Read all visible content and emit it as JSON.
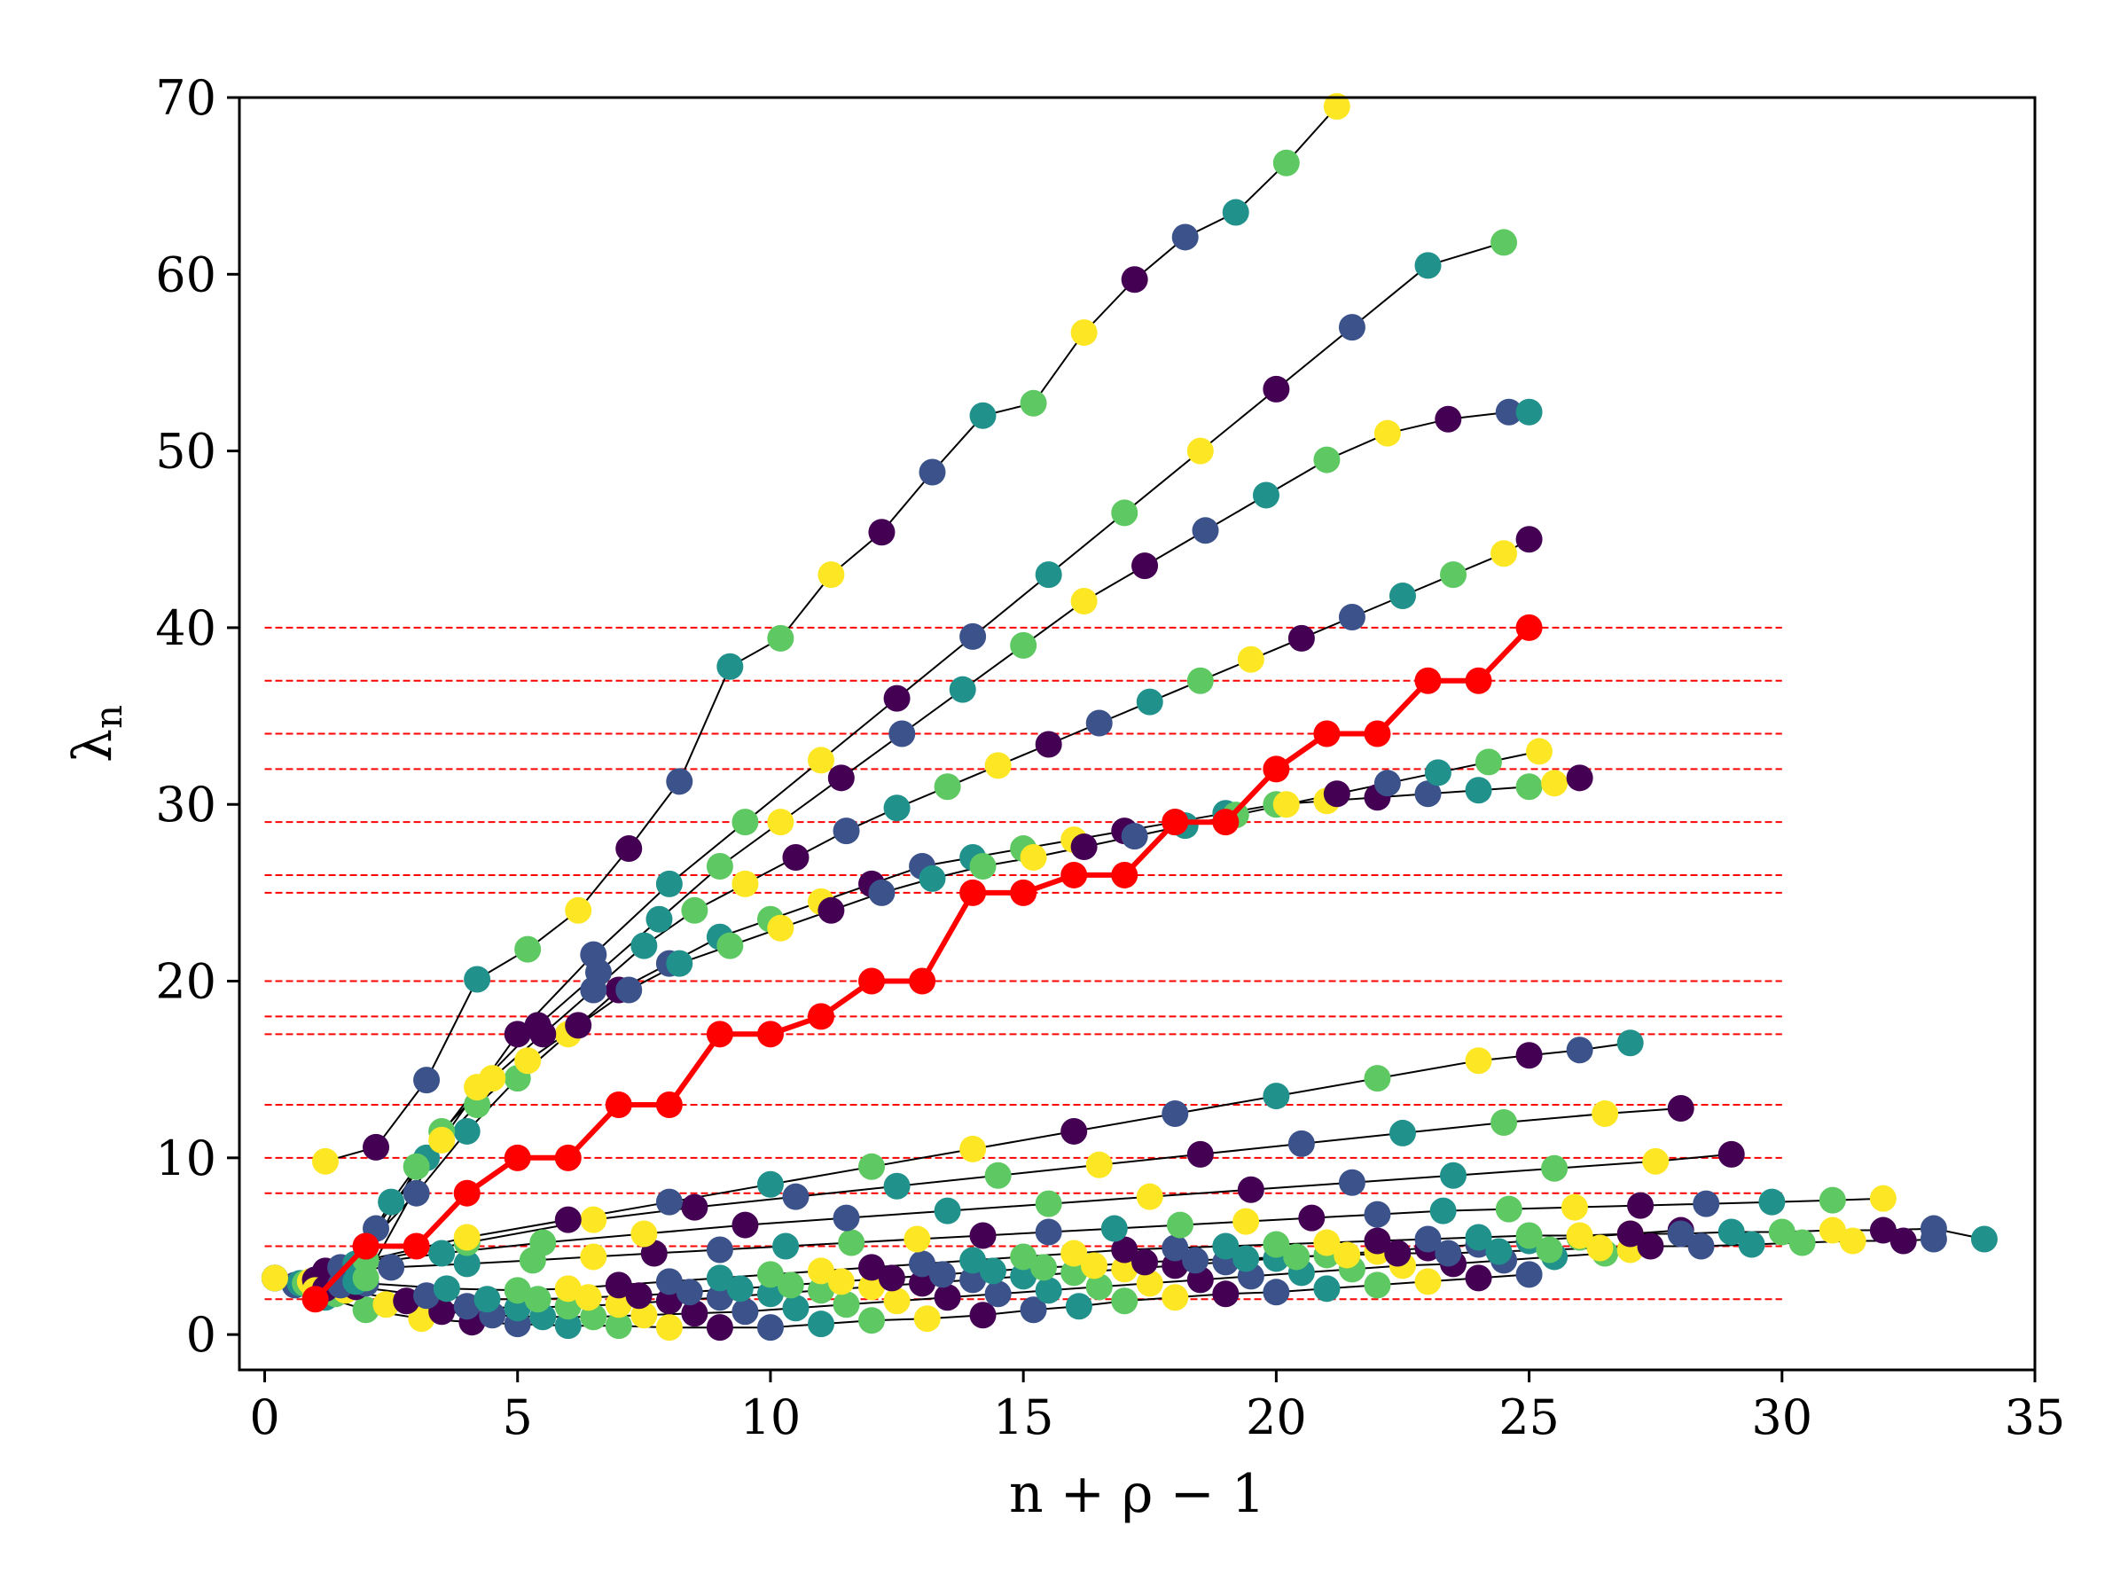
{
  "chart_data": {
    "type": "line",
    "title": "",
    "xlabel": "n + ρ − 1",
    "ylabel": "λ",
    "ylabel_sub": "n",
    "xlim": [
      -0.5,
      35
    ],
    "ylim": [
      -2,
      70
    ],
    "xticks": [
      0,
      5,
      10,
      15,
      20,
      25,
      30,
      35
    ],
    "yticks": [
      0,
      10,
      20,
      30,
      40,
      50,
      60,
      70
    ],
    "grid": false,
    "legend": "none",
    "colormap": [
      "#440154",
      "#3b528b",
      "#21918c",
      "#5ec962",
      "#fde725"
    ],
    "highlight_color": "#ff0000",
    "hline_color": "#ff0000",
    "hlines": {
      "y": [
        2,
        5,
        8,
        10,
        13,
        17,
        18,
        20,
        25,
        26,
        29,
        32,
        34,
        37,
        40
      ],
      "xmin": 0,
      "xmax": 30
    },
    "fan": {
      "origin": [
        0.2,
        3.2
      ],
      "lines": [
        {
          "x": [
            0.2,
            0.6,
            1.2,
            2.0,
            3.1,
            4.1,
            5.0,
            6.0,
            7.0,
            8.0,
            9.0,
            10.0,
            11.0,
            12.0,
            13.1,
            14.2,
            15.2,
            16.1,
            17.0,
            18.0,
            19.0,
            20.0,
            21.0,
            22.0,
            23.0,
            24.0,
            25.0
          ],
          "y": [
            3.2,
            2.8,
            2.1,
            1.4,
            0.9,
            0.7,
            0.6,
            0.5,
            0.5,
            0.4,
            0.4,
            0.4,
            0.6,
            0.8,
            0.9,
            1.1,
            1.4,
            1.6,
            1.9,
            2.1,
            2.3,
            2.4,
            2.6,
            2.8,
            3.0,
            3.2,
            3.4
          ]
        },
        {
          "x": [
            0.2,
            0.7,
            1.4,
            2.4,
            3.5,
            4.5,
            5.5,
            6.5,
            7.5,
            8.5,
            9.5,
            10.5,
            11.5,
            12.5,
            13.5,
            14.5,
            15.5,
            16.5,
            17.5,
            18.5,
            19.5,
            20.5,
            21.5,
            22.5,
            23.5,
            24.5,
            25.5,
            26.5,
            27.0
          ],
          "y": [
            3.2,
            2.9,
            2.3,
            1.7,
            1.3,
            1.1,
            1.0,
            1.0,
            1.1,
            1.2,
            1.3,
            1.5,
            1.7,
            1.9,
            2.1,
            2.3,
            2.5,
            2.7,
            2.9,
            3.1,
            3.3,
            3.5,
            3.7,
            3.9,
            4.0,
            4.2,
            4.4,
            4.6,
            4.8
          ]
        },
        {
          "x": [
            0.2,
            0.8,
            1.6,
            2.8,
            4.0,
            5.0,
            6.0,
            7.0,
            8.0,
            9.0,
            10.0,
            11.0,
            12.0,
            13.0,
            14.0,
            15.0,
            16.0,
            17.0,
            18.0,
            19.0,
            20.0,
            21.0,
            22.0,
            23.0,
            24.0,
            25.0,
            26.0,
            27.0,
            28.0
          ],
          "y": [
            3.2,
            2.9,
            2.5,
            1.9,
            1.6,
            1.5,
            1.6,
            1.7,
            1.9,
            2.1,
            2.3,
            2.5,
            2.7,
            2.9,
            3.1,
            3.3,
            3.5,
            3.7,
            3.9,
            4.1,
            4.3,
            4.5,
            4.7,
            4.9,
            5.1,
            5.3,
            5.5,
            5.7,
            5.9
          ]
        },
        {
          "x": [
            0.2,
            0.9,
            1.8,
            3.2,
            4.4,
            5.4,
            6.4,
            7.4,
            8.4,
            9.4,
            10.4,
            11.4,
            12.4,
            13.4,
            14.4,
            15.4,
            16.4,
            17.4,
            18.4,
            19.4,
            20.4,
            21.4,
            22.4,
            23.4,
            24.4,
            25.4,
            26.4,
            27.4,
            28.4,
            29.4,
            30.4,
            31.4,
            32.4,
            33.0
          ],
          "y": [
            3.2,
            3.0,
            2.7,
            2.2,
            2.0,
            2.0,
            2.1,
            2.2,
            2.4,
            2.6,
            2.8,
            3.0,
            3.2,
            3.4,
            3.6,
            3.8,
            3.9,
            4.1,
            4.2,
            4.3,
            4.4,
            4.5,
            4.6,
            4.6,
            4.7,
            4.8,
            4.9,
            5.0,
            5.0,
            5.1,
            5.2,
            5.3,
            5.3,
            5.4
          ]
        },
        {
          "x": [
            0.2,
            1.0,
            2.0,
            3.6,
            5.0,
            6.0,
            7.0,
            8.0,
            9.0,
            10.0,
            11.0,
            12.0,
            13.0,
            14.0,
            15.0,
            16.0,
            17.0,
            18.0,
            19.0,
            20.0,
            21.0,
            22.0,
            23.0,
            24.0,
            25.0,
            26.0,
            27.0,
            28.0,
            29.0,
            30.0,
            31.0,
            32.0,
            33.0,
            34.0
          ],
          "y": [
            3.2,
            3.1,
            2.9,
            2.6,
            2.5,
            2.6,
            2.8,
            3.0,
            3.2,
            3.4,
            3.6,
            3.8,
            4.0,
            4.2,
            4.4,
            4.6,
            4.8,
            4.9,
            5.0,
            5.1,
            5.2,
            5.3,
            5.4,
            5.5,
            5.6,
            5.6,
            5.7,
            5.7,
            5.8,
            5.8,
            5.9,
            5.9,
            6.0,
            5.4
          ]
        },
        {
          "x": [
            1.2,
            2.5,
            4.0,
            5.3,
            6.5,
            7.7,
            9.0,
            10.3,
            11.6,
            12.9,
            14.2,
            15.5,
            16.8,
            18.1,
            19.4,
            20.7,
            22.0,
            23.3,
            24.6,
            25.9,
            27.2,
            28.5,
            29.8,
            31.0,
            32.0
          ],
          "y": [
            3.6,
            3.8,
            4.0,
            4.2,
            4.4,
            4.6,
            4.8,
            5.0,
            5.2,
            5.4,
            5.6,
            5.8,
            6.0,
            6.2,
            6.4,
            6.6,
            6.8,
            7.0,
            7.1,
            7.2,
            7.3,
            7.4,
            7.5,
            7.6,
            7.7
          ]
        },
        {
          "x": [
            1.5,
            3.5,
            5.5,
            7.5,
            9.5,
            11.5,
            13.5,
            15.5,
            17.5,
            19.5,
            21.5,
            23.5,
            25.5,
            27.5,
            29.0
          ],
          "y": [
            3.8,
            4.6,
            5.2,
            5.7,
            6.2,
            6.6,
            7.0,
            7.4,
            7.8,
            8.2,
            8.6,
            9.0,
            9.4,
            9.8,
            10.2
          ]
        },
        {
          "x": [
            1.8,
            4.0,
            6.5,
            8.5,
            10.5,
            12.5,
            14.5,
            16.5,
            18.5,
            20.5,
            22.5,
            24.5,
            26.5,
            28.0
          ],
          "y": [
            4.0,
            5.2,
            6.5,
            7.2,
            7.8,
            8.4,
            9.0,
            9.6,
            10.2,
            10.8,
            11.4,
            12.0,
            12.5,
            12.8
          ]
        },
        {
          "x": [
            2.0,
            4.0,
            6.0,
            8.0,
            10.0,
            12.0,
            14.0,
            16.0,
            18.0,
            20.0,
            22.0,
            24.0,
            25.0,
            26.0,
            27.0
          ],
          "y": [
            4.2,
            5.5,
            6.5,
            7.5,
            8.5,
            9.5,
            10.5,
            11.5,
            12.5,
            13.5,
            14.5,
            15.5,
            15.8,
            16.1,
            16.5
          ]
        }
      ]
    },
    "steep_lines": [
      {
        "x": [
          1.0,
          2.0,
          3.0,
          4.0,
          5.0,
          6.0,
          7.0,
          8.0,
          9.0,
          10.0,
          11.0,
          12.0,
          13.0,
          14.0,
          15.0,
          16.0,
          17.0,
          18.0,
          19.0,
          20.0,
          21.0,
          22.0,
          23.0,
          24.0,
          25.0,
          25.5,
          26.0
        ],
        "y": [
          2.5,
          5.0,
          8.0,
          11.5,
          14.5,
          17.0,
          19.5,
          21.0,
          22.5,
          23.5,
          24.5,
          25.5,
          26.5,
          27.0,
          27.5,
          28.0,
          28.5,
          29.0,
          29.5,
          30.0,
          30.2,
          30.4,
          30.6,
          30.8,
          31.0,
          31.2,
          31.5
        ]
      },
      {
        "x": [
          1.2,
          2.2,
          3.2,
          4.2,
          5.2,
          6.2,
          7.2,
          8.2,
          9.2,
          10.2,
          11.2,
          12.2,
          13.2,
          14.2,
          15.2,
          16.2,
          17.2,
          18.2,
          19.2,
          20.2,
          21.2,
          22.2,
          23.2,
          24.2,
          25.2
        ],
        "y": [
          2.6,
          6.0,
          10.0,
          13.0,
          15.5,
          17.5,
          19.5,
          21.0,
          22.0,
          23.0,
          24.0,
          25.0,
          25.8,
          26.5,
          27.0,
          27.6,
          28.2,
          28.8,
          29.4,
          30.0,
          30.6,
          31.2,
          31.8,
          32.4,
          33.0
        ]
      },
      {
        "x": [
          1.5,
          2.5,
          3.5,
          4.5,
          5.5,
          6.5,
          7.5,
          8.5,
          9.5,
          10.5,
          11.5,
          12.5,
          13.5,
          14.5,
          15.5,
          16.5,
          17.5,
          18.5,
          19.5,
          20.5,
          21.5,
          22.5,
          23.5,
          24.5,
          25.0
        ],
        "y": [
          2.8,
          7.5,
          11.5,
          14.5,
          17.0,
          19.5,
          22.0,
          24.0,
          25.5,
          27.0,
          28.5,
          29.8,
          31.0,
          32.2,
          33.4,
          34.6,
          35.8,
          37.0,
          38.2,
          39.4,
          40.6,
          41.8,
          43.0,
          44.2,
          45.0
        ]
      },
      {
        "x": [
          1.8,
          3.0,
          4.2,
          5.4,
          6.6,
          7.8,
          9.0,
          10.2,
          11.4,
          12.6,
          13.8,
          15.0,
          16.2,
          17.4,
          18.6,
          19.8,
          21.0,
          22.2,
          23.4,
          24.6,
          25.0
        ],
        "y": [
          3.0,
          9.5,
          14.0,
          17.5,
          20.5,
          23.5,
          26.5,
          29.0,
          31.5,
          34.0,
          36.5,
          39.0,
          41.5,
          43.5,
          45.5,
          47.5,
          49.5,
          51.0,
          51.8,
          52.2,
          52.2
        ]
      },
      {
        "x": [
          2.0,
          3.5,
          5.0,
          6.5,
          8.0,
          9.5,
          11.0,
          12.5,
          14.0,
          15.5,
          17.0,
          18.5,
          20.0,
          21.5,
          23.0,
          24.5
        ],
        "y": [
          3.2,
          11.0,
          17.0,
          21.5,
          25.5,
          29.0,
          32.5,
          36.0,
          39.5,
          43.0,
          46.5,
          50.0,
          53.5,
          57.0,
          60.5,
          61.8
        ]
      },
      {
        "x": [
          1.2,
          2.2,
          3.2,
          4.2,
          5.2,
          6.2,
          7.2,
          8.2,
          9.2,
          10.2,
          11.2,
          12.2,
          13.2,
          14.2,
          15.2,
          16.2,
          17.2,
          18.2,
          19.2,
          20.2,
          21.2
        ],
        "y": [
          9.8,
          10.6,
          14.4,
          20.1,
          21.8,
          24.0,
          27.5,
          31.3,
          37.8,
          39.4,
          43.0,
          45.4,
          48.8,
          52.0,
          52.7,
          56.7,
          59.7,
          62.1,
          63.5,
          66.3,
          69.5
        ]
      }
    ],
    "highlight_series": {
      "name": "",
      "x": [
        1.0,
        2.0,
        3.0,
        4.0,
        5.0,
        6.0,
        7.0,
        8.0,
        9.0,
        10.0,
        11.0,
        12.0,
        13.0,
        14.0,
        15.0,
        16.0,
        17.0,
        18.0,
        19.0,
        20.0,
        21.0,
        22.0,
        23.0,
        24.0,
        25.0
      ],
      "y": [
        2,
        5,
        5,
        8,
        10,
        10,
        13,
        13,
        17,
        17,
        18,
        20,
        20,
        25,
        25,
        26,
        26,
        29,
        29,
        32,
        34,
        34,
        37,
        37,
        40
      ]
    }
  }
}
